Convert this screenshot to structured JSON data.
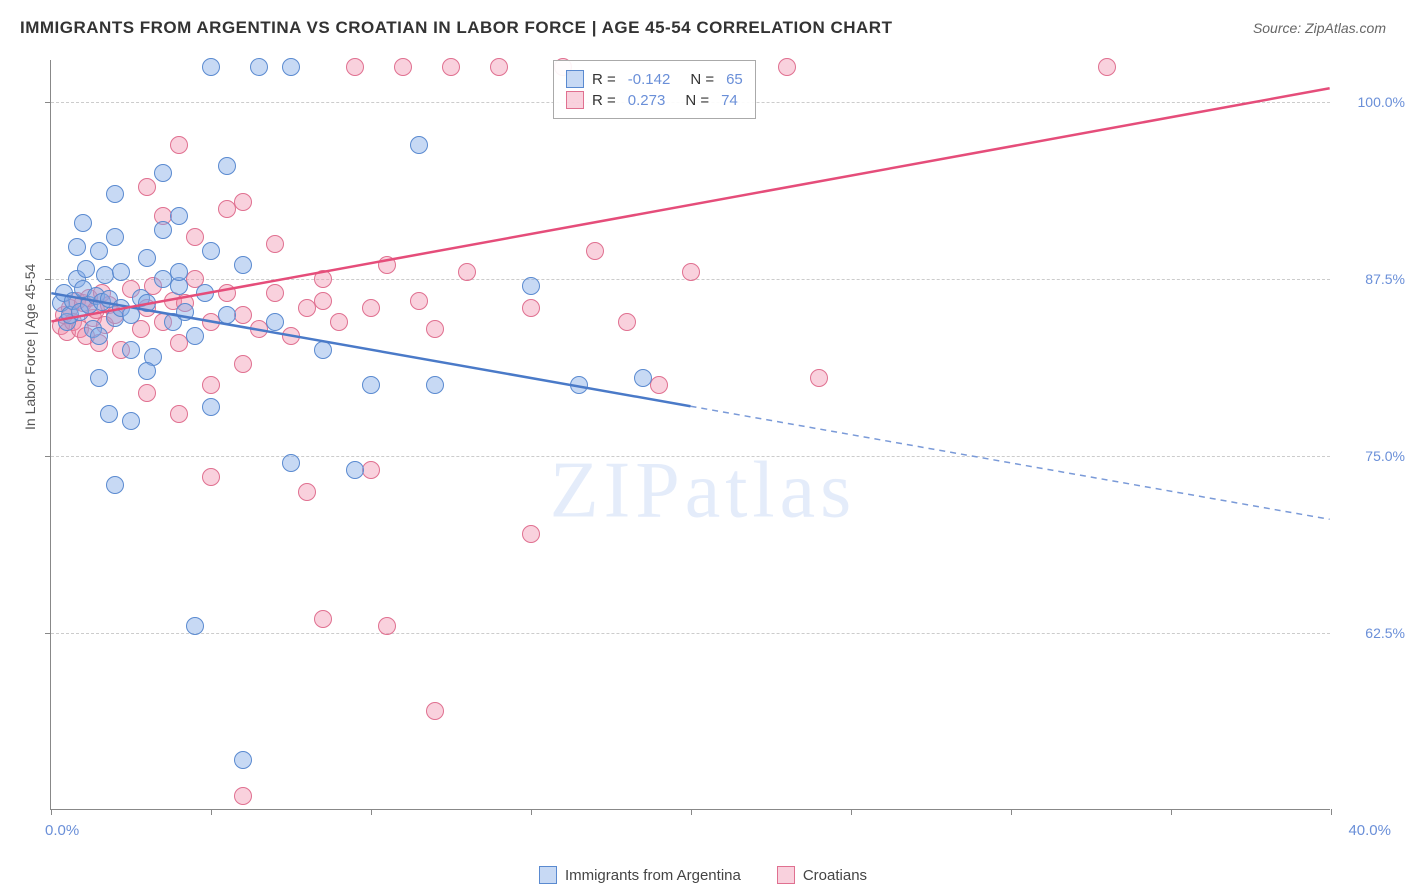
{
  "title": "IMMIGRANTS FROM ARGENTINA VS CROATIAN IN LABOR FORCE | AGE 45-54 CORRELATION CHART",
  "source": "Source: ZipAtlas.com",
  "y_axis_label": "In Labor Force | Age 45-54",
  "x_min_label": "0.0%",
  "x_max_label": "40.0%",
  "watermark": "ZIPatlas",
  "chart": {
    "type": "scatter",
    "xlim": [
      0,
      40
    ],
    "ylim": [
      50,
      103
    ],
    "y_ticks": [
      62.5,
      75.0,
      87.5,
      100.0
    ],
    "y_tick_labels": [
      "62.5%",
      "75.0%",
      "87.5%",
      "100.0%"
    ],
    "x_tick_positions": [
      0,
      5,
      10,
      15,
      20,
      25,
      30,
      35,
      40
    ],
    "background_color": "#ffffff",
    "grid_color": "#cccccc",
    "axis_color": "#888888",
    "point_radius": 9
  },
  "series": {
    "argentina": {
      "label": "Immigrants from Argentina",
      "color_fill": "rgba(130,170,230,0.45)",
      "color_stroke": "#5a8ad0",
      "R": "-0.142",
      "N": "65",
      "trend": {
        "x1": 0,
        "y1": 86.5,
        "x2": 20,
        "y2": 78.5,
        "x2_dash": 40,
        "y2_dash": 70.5
      },
      "points": [
        [
          0.3,
          85.8
        ],
        [
          0.4,
          86.5
        ],
        [
          0.5,
          84.5
        ],
        [
          0.6,
          85.0
        ],
        [
          0.7,
          86.0
        ],
        [
          0.8,
          87.5
        ],
        [
          0.9,
          85.2
        ],
        [
          1.0,
          86.8
        ],
        [
          1.1,
          88.2
        ],
        [
          1.2,
          85.7
        ],
        [
          1.3,
          84.0
        ],
        [
          1.4,
          86.3
        ],
        [
          1.5,
          83.5
        ],
        [
          1.6,
          85.9
        ],
        [
          1.7,
          87.8
        ],
        [
          1.8,
          86.1
        ],
        [
          1.5,
          89.5
        ],
        [
          2.0,
          84.8
        ],
        [
          0.8,
          89.8
        ],
        [
          2.2,
          85.5
        ],
        [
          2.5,
          85.0
        ],
        [
          2.5,
          82.5
        ],
        [
          2.0,
          90.5
        ],
        [
          2.8,
          86.2
        ],
        [
          3.0,
          85.8
        ],
        [
          3.2,
          82.0
        ],
        [
          3.5,
          91.0
        ],
        [
          1.5,
          80.5
        ],
        [
          3.8,
          84.5
        ],
        [
          4.0,
          87.0
        ],
        [
          4.2,
          85.2
        ],
        [
          4.5,
          83.5
        ],
        [
          2.0,
          93.5
        ],
        [
          4.8,
          86.5
        ],
        [
          5.0,
          78.5
        ],
        [
          1.0,
          91.5
        ],
        [
          5.5,
          85.0
        ],
        [
          6.0,
          88.5
        ],
        [
          2.5,
          77.5
        ],
        [
          6.5,
          102.5
        ],
        [
          7.0,
          84.5
        ],
        [
          3.0,
          89.0
        ],
        [
          7.5,
          74.5
        ],
        [
          1.8,
          78.0
        ],
        [
          4.5,
          63.0
        ],
        [
          8.5,
          82.5
        ],
        [
          4.0,
          92.0
        ],
        [
          5.0,
          102.5
        ],
        [
          5.5,
          95.5
        ],
        [
          3.5,
          95.0
        ],
        [
          10.0,
          80.0
        ],
        [
          12.0,
          80.0
        ],
        [
          11.5,
          97.0
        ],
        [
          6.0,
          53.5
        ],
        [
          2.0,
          73.0
        ],
        [
          7.5,
          102.5
        ],
        [
          16.5,
          80.0
        ],
        [
          15.0,
          87.0
        ],
        [
          9.5,
          74.0
        ],
        [
          3.0,
          81.0
        ],
        [
          18.5,
          80.5
        ],
        [
          4.0,
          88.0
        ],
        [
          5.0,
          89.5
        ],
        [
          2.2,
          88.0
        ],
        [
          3.5,
          87.5
        ]
      ]
    },
    "croatians": {
      "label": "Croatians",
      "color_fill": "rgba(240,140,170,0.40)",
      "color_stroke": "#e07090",
      "R": "0.273",
      "N": "74",
      "trend": {
        "x1": 0,
        "y1": 84.5,
        "x2": 40,
        "y2": 101.0
      },
      "points": [
        [
          0.3,
          84.2
        ],
        [
          0.4,
          85.0
        ],
        [
          0.5,
          83.8
        ],
        [
          0.6,
          85.5
        ],
        [
          0.7,
          84.5
        ],
        [
          0.8,
          86.0
        ],
        [
          0.9,
          84.0
        ],
        [
          1.0,
          85.8
        ],
        [
          1.1,
          83.5
        ],
        [
          1.2,
          86.2
        ],
        [
          1.3,
          84.8
        ],
        [
          1.4,
          85.3
        ],
        [
          1.5,
          83.0
        ],
        [
          1.6,
          86.5
        ],
        [
          1.7,
          84.3
        ],
        [
          1.8,
          85.7
        ],
        [
          2.0,
          85.0
        ],
        [
          2.2,
          82.5
        ],
        [
          2.5,
          86.8
        ],
        [
          2.8,
          84.0
        ],
        [
          3.0,
          85.5
        ],
        [
          3.2,
          87.0
        ],
        [
          3.5,
          84.5
        ],
        [
          3.8,
          86.0
        ],
        [
          4.0,
          83.0
        ],
        [
          4.2,
          85.8
        ],
        [
          4.5,
          87.5
        ],
        [
          5.0,
          84.5
        ],
        [
          5.5,
          86.5
        ],
        [
          6.0,
          85.0
        ],
        [
          3.0,
          79.5
        ],
        [
          3.5,
          92.0
        ],
        [
          6.5,
          84.0
        ],
        [
          7.0,
          86.5
        ],
        [
          7.5,
          83.5
        ],
        [
          8.0,
          85.5
        ],
        [
          4.0,
          78.0
        ],
        [
          4.5,
          90.5
        ],
        [
          8.5,
          86.0
        ],
        [
          5.0,
          80.0
        ],
        [
          9.0,
          84.5
        ],
        [
          5.5,
          92.5
        ],
        [
          9.5,
          102.5
        ],
        [
          10.0,
          74.0
        ],
        [
          6.0,
          81.5
        ],
        [
          10.5,
          88.5
        ],
        [
          11.0,
          102.5
        ],
        [
          7.0,
          90.0
        ],
        [
          12.0,
          84.0
        ],
        [
          12.5,
          102.5
        ],
        [
          13.0,
          88.0
        ],
        [
          8.0,
          72.5
        ],
        [
          14.0,
          102.5
        ],
        [
          6.0,
          51.0
        ],
        [
          15.0,
          85.5
        ],
        [
          8.5,
          63.5
        ],
        [
          16.0,
          102.5
        ],
        [
          10.5,
          63.0
        ],
        [
          17.0,
          89.5
        ],
        [
          18.0,
          84.5
        ],
        [
          12.0,
          57.0
        ],
        [
          19.0,
          80.0
        ],
        [
          20.0,
          88.0
        ],
        [
          23.0,
          102.5
        ],
        [
          24.0,
          80.5
        ],
        [
          15.0,
          69.5
        ],
        [
          33.0,
          102.5
        ],
        [
          10.0,
          85.5
        ],
        [
          11.5,
          86.0
        ],
        [
          4.0,
          97.0
        ],
        [
          6.0,
          93.0
        ],
        [
          5.0,
          73.5
        ],
        [
          3.0,
          94.0
        ],
        [
          8.5,
          87.5
        ]
      ]
    }
  },
  "legend_corr": {
    "R_label": "R =",
    "N_label": "N ="
  }
}
